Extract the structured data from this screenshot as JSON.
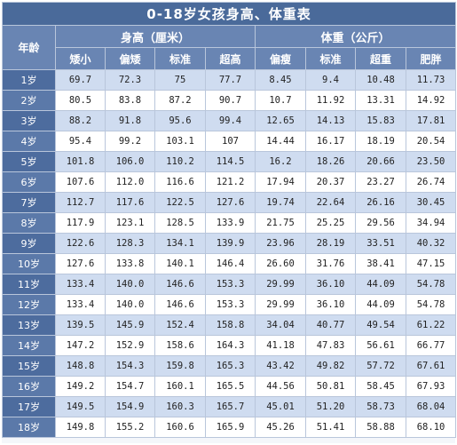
{
  "table": {
    "title": "0-18岁女孩身高、体重表",
    "age_header": "年龄",
    "height_group": "身高（厘米）",
    "weight_group": "体重（公斤）",
    "height_cols": [
      "矮小",
      "偏矮",
      "标准",
      "超高"
    ],
    "weight_cols": [
      "偏瘦",
      "标准",
      "超重",
      "肥胖"
    ],
    "rows": [
      {
        "age": "1岁",
        "h": [
          "69.7",
          "72.3",
          "75",
          "77.7"
        ],
        "w": [
          "8.45",
          "9.4",
          "10.48",
          "11.73"
        ]
      },
      {
        "age": "2岁",
        "h": [
          "80.5",
          "83.8",
          "87.2",
          "90.7"
        ],
        "w": [
          "10.7",
          "11.92",
          "13.31",
          "14.92"
        ]
      },
      {
        "age": "3岁",
        "h": [
          "88.2",
          "91.8",
          "95.6",
          "99.4"
        ],
        "w": [
          "12.65",
          "14.13",
          "15.83",
          "17.81"
        ]
      },
      {
        "age": "4岁",
        "h": [
          "95.4",
          "99.2",
          "103.1",
          "107"
        ],
        "w": [
          "14.44",
          "16.17",
          "18.19",
          "20.54"
        ]
      },
      {
        "age": "5岁",
        "h": [
          "101.8",
          "106.0",
          "110.2",
          "114.5"
        ],
        "w": [
          "16.2",
          "18.26",
          "20.66",
          "23.50"
        ]
      },
      {
        "age": "6岁",
        "h": [
          "107.6",
          "112.0",
          "116.6",
          "121.2"
        ],
        "w": [
          "17.94",
          "20.37",
          "23.27",
          "26.74"
        ]
      },
      {
        "age": "7岁",
        "h": [
          "112.7",
          "117.6",
          "122.5",
          "127.6"
        ],
        "w": [
          "19.74",
          "22.64",
          "26.16",
          "30.45"
        ]
      },
      {
        "age": "8岁",
        "h": [
          "117.9",
          "123.1",
          "128.5",
          "133.9"
        ],
        "w": [
          "21.75",
          "25.25",
          "29.56",
          "34.94"
        ]
      },
      {
        "age": "9岁",
        "h": [
          "122.6",
          "128.3",
          "134.1",
          "139.9"
        ],
        "w": [
          "23.96",
          "28.19",
          "33.51",
          "40.32"
        ]
      },
      {
        "age": "10岁",
        "h": [
          "127.6",
          "133.8",
          "140.1",
          "146.4"
        ],
        "w": [
          "26.60",
          "31.76",
          "38.41",
          "47.15"
        ]
      },
      {
        "age": "11岁",
        "h": [
          "133.4",
          "140.0",
          "146.6",
          "153.3"
        ],
        "w": [
          "29.99",
          "36.10",
          "44.09",
          "54.78"
        ]
      },
      {
        "age": "12岁",
        "h": [
          "133.4",
          "140.0",
          "146.6",
          "153.3"
        ],
        "w": [
          "29.99",
          "36.10",
          "44.09",
          "54.78"
        ]
      },
      {
        "age": "13岁",
        "h": [
          "139.5",
          "145.9",
          "152.4",
          "158.8"
        ],
        "w": [
          "34.04",
          "40.77",
          "49.54",
          "61.22"
        ]
      },
      {
        "age": "14岁",
        "h": [
          "147.2",
          "152.9",
          "158.6",
          "164.3"
        ],
        "w": [
          "41.18",
          "47.83",
          "56.61",
          "66.77"
        ]
      },
      {
        "age": "15岁",
        "h": [
          "148.8",
          "154.3",
          "159.8",
          "165.3"
        ],
        "w": [
          "43.42",
          "49.82",
          "57.72",
          "67.61"
        ]
      },
      {
        "age": "16岁",
        "h": [
          "149.2",
          "154.7",
          "160.1",
          "165.5"
        ],
        "w": [
          "44.56",
          "50.81",
          "58.45",
          "67.93"
        ]
      },
      {
        "age": "17岁",
        "h": [
          "149.5",
          "154.9",
          "160.3",
          "165.7"
        ],
        "w": [
          "45.01",
          "51.20",
          "58.73",
          "68.04"
        ]
      },
      {
        "age": "18岁",
        "h": [
          "149.8",
          "155.2",
          "160.6",
          "165.9"
        ],
        "w": [
          "45.26",
          "51.41",
          "58.88",
          "68.10"
        ]
      }
    ]
  }
}
